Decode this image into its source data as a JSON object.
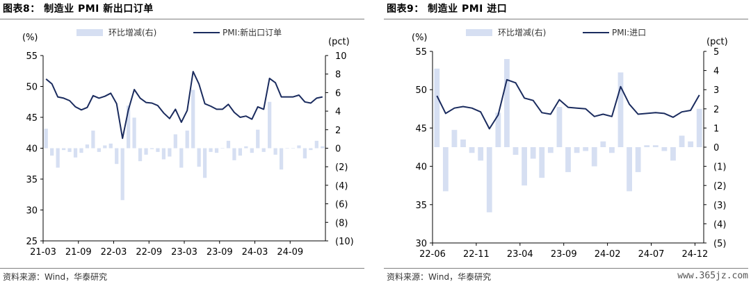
{
  "chart_data": [
    {
      "type": "bar+line",
      "title": "图表8：  制造业 PMI 新出口订单",
      "source": "资料来源：Wind，华泰研究",
      "left_unit": "(%)",
      "right_unit": "(pct)",
      "left_ylim": [
        25,
        55
      ],
      "left_ticks": [
        "25",
        "30",
        "35",
        "40",
        "45",
        "50",
        "55"
      ],
      "right_ylim": [
        -10,
        10
      ],
      "right_ticks": [
        "(10)",
        "(8)",
        "(6)",
        "(4)",
        "(2)",
        "0",
        "2",
        "4",
        "6",
        "8",
        "10"
      ],
      "x_tick_labels": [
        "21-03",
        "21-09",
        "22-03",
        "22-09",
        "23-03",
        "23-09",
        "24-03",
        "24-09"
      ],
      "x_tick_index": [
        0,
        6,
        12,
        18,
        24,
        30,
        36,
        42
      ],
      "legend": {
        "bar": "环比增减(右)",
        "line": "PMI:新出口订单"
      },
      "bar_color": "#d6dff2",
      "line_color": "#1a2b5e",
      "series": [
        {
          "name": "PMI:新出口订单",
          "axis": "left",
          "kind": "line",
          "values": [
            51.2,
            50.4,
            48.3,
            48.1,
            47.7,
            46.7,
            46.2,
            46.6,
            48.5,
            48.1,
            48.4,
            48.9,
            47.2,
            41.6,
            46.2,
            49.5,
            48.1,
            47.4,
            47.3,
            46.9,
            45.7,
            44.8,
            46.3,
            44.2,
            46.1,
            52.4,
            50.4,
            47.2,
            46.8,
            46.3,
            46.3,
            47.1,
            45.8,
            45.0,
            45.2,
            44.7,
            46.7,
            46.3,
            51.3,
            50.6,
            48.3,
            48.3,
            48.3,
            48.6,
            47.5,
            47.3,
            48.1,
            48.3
          ]
        },
        {
          "name": "环比增减(右)",
          "axis": "right",
          "kind": "bar",
          "values": [
            2.1,
            -0.8,
            -2.1,
            -0.2,
            -0.4,
            -1.0,
            -0.5,
            0.4,
            1.9,
            -0.4,
            0.3,
            0.5,
            -1.7,
            -5.6,
            4.6,
            3.3,
            -1.4,
            -0.7,
            -0.1,
            -0.4,
            -1.2,
            -0.9,
            1.5,
            -2.1,
            1.9,
            6.3,
            -2.0,
            -3.2,
            -0.4,
            -0.5,
            0.0,
            0.8,
            -1.3,
            -0.8,
            0.2,
            -0.5,
            2.0,
            -0.4,
            5.0,
            -0.7,
            -2.3,
            0.0,
            0.0,
            0.3,
            -1.1,
            -0.2,
            0.8,
            0.2
          ]
        }
      ]
    },
    {
      "type": "bar+line",
      "title": "图表9：  制造业 PMI 进口",
      "source": "资料来源：Wind，华泰研究",
      "left_unit": "(%)",
      "right_unit": "(pct)",
      "left_ylim": [
        30,
        55
      ],
      "left_ticks": [
        "30",
        "35",
        "40",
        "45",
        "50",
        "55"
      ],
      "right_ylim": [
        -5,
        5
      ],
      "right_ticks": [
        "(5)",
        "(4)",
        "(3)",
        "(2)",
        "(1)",
        "0",
        "1",
        "2",
        "3",
        "4",
        "5"
      ],
      "x_tick_labels": [
        "22-06",
        "22-11",
        "23-04",
        "23-09",
        "24-02",
        "24-07",
        "24-12"
      ],
      "x_tick_index": [
        0,
        5,
        10,
        15,
        20,
        25,
        30
      ],
      "legend": {
        "bar": "环比增减(右)",
        "line": "PMI:进口"
      },
      "bar_color": "#d6dff2",
      "line_color": "#1a2b5e",
      "series": [
        {
          "name": "PMI:进口",
          "axis": "left",
          "kind": "line",
          "values": [
            49.2,
            46.9,
            47.6,
            47.8,
            47.6,
            47.1,
            44.9,
            46.7,
            51.3,
            50.9,
            48.9,
            48.6,
            47.0,
            46.8,
            48.7,
            47.7,
            47.6,
            47.5,
            46.5,
            46.8,
            46.5,
            50.4,
            48.1,
            46.8,
            46.9,
            47.0,
            46.9,
            46.4,
            47.1,
            47.3,
            49.3
          ]
        },
        {
          "name": "环比增减(右)",
          "axis": "right",
          "kind": "bar",
          "values": [
            4.1,
            -2.3,
            0.9,
            0.4,
            -0.3,
            -0.7,
            -3.4,
            1.8,
            4.6,
            -0.4,
            -2.0,
            -0.6,
            -1.6,
            -0.3,
            2.1,
            -1.3,
            -0.3,
            -0.2,
            -1.0,
            0.3,
            -0.3,
            3.9,
            -2.3,
            -1.3,
            0.1,
            0.1,
            -0.2,
            -0.7,
            0.6,
            0.3,
            2.0
          ]
        }
      ]
    }
  ],
  "watermark": "www.365jz.com"
}
